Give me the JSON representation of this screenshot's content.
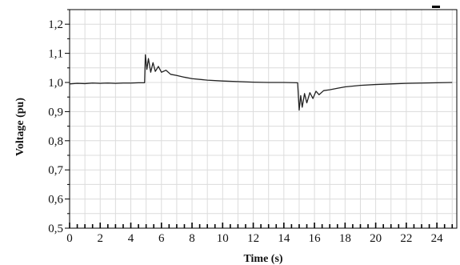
{
  "chart_data": {
    "type": "line",
    "xlabel": "Time (s)",
    "ylabel": "Voltage (pu)",
    "xlim": [
      0,
      25.3
    ],
    "ylim": [
      0.5,
      1.25
    ],
    "xticks": [
      0,
      2,
      4,
      6,
      8,
      10,
      12,
      14,
      16,
      18,
      20,
      22,
      24
    ],
    "xtick_labels": [
      "0",
      "2",
      "4",
      "6",
      "8",
      "10",
      "12",
      "14",
      "16",
      "18",
      "20",
      "22",
      "24"
    ],
    "yticks": [
      0.5,
      0.6,
      0.7,
      0.8,
      0.9,
      1.0,
      1.1,
      1.2
    ],
    "ytick_labels": [
      "0,5",
      "0,6",
      "0,7",
      "0,8",
      "0,9",
      "1,0",
      "1,1",
      "1,2"
    ],
    "grid": true,
    "series": [
      {
        "color": "#222222",
        "x": [
          0,
          0.5,
          1,
          1.5,
          2,
          2.5,
          3,
          3.5,
          4,
          4.5,
          4.9,
          4.95,
          5.05,
          5.15,
          5.3,
          5.45,
          5.6,
          5.8,
          6.0,
          6.3,
          6.6,
          7.0,
          7.5,
          8,
          9,
          10,
          11,
          12,
          13,
          14,
          14.9,
          15.0,
          15.1,
          15.2,
          15.35,
          15.5,
          15.7,
          15.9,
          16.1,
          16.3,
          16.6,
          17,
          17.5,
          18,
          19,
          20,
          21,
          22,
          23,
          24,
          25
        ],
        "y": [
          0.995,
          0.997,
          0.996,
          0.998,
          0.997,
          0.998,
          0.997,
          0.998,
          0.998,
          0.999,
          0.999,
          1.095,
          1.045,
          1.082,
          1.035,
          1.068,
          1.038,
          1.055,
          1.035,
          1.042,
          1.028,
          1.024,
          1.018,
          1.013,
          1.008,
          1.005,
          1.003,
          1.001,
          1.0,
          1.0,
          0.999,
          0.905,
          0.955,
          0.915,
          0.962,
          0.93,
          0.965,
          0.945,
          0.97,
          0.958,
          0.972,
          0.975,
          0.98,
          0.985,
          0.99,
          0.993,
          0.995,
          0.997,
          0.998,
          0.999,
          1.0
        ]
      }
    ]
  }
}
